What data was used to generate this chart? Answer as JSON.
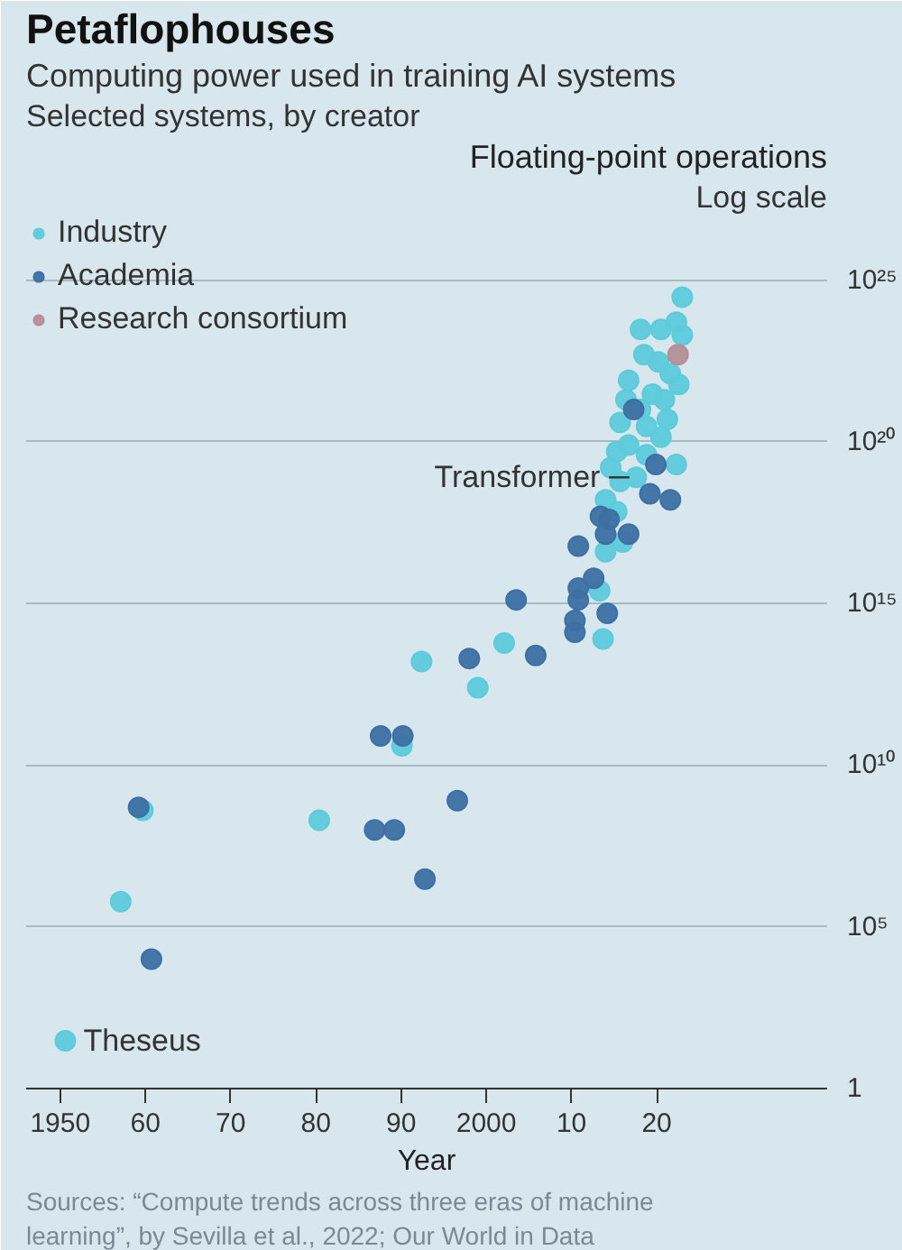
{
  "chart_data": {
    "type": "scatter",
    "title": "Petaflophouses",
    "subtitle": "Computing power used in training AI systems",
    "xlabel": "Year",
    "ylabel": "Floating-point operations",
    "annotations": [
      "Selected systems, by creator",
      "Log scale",
      "Sources: “Compute trends across three eras of machine learning”, by Sevilla et al., 2022; Our World in Data",
      "1",
      {
        "text": "Transformer",
        "x": 2017.6,
        "y": 8e+18
      },
      {
        "text": "Theseus",
        "x": 1950.6,
        "y": 30
      }
    ],
    "series": [
      {
        "name": "Industry",
        "color": "#5ecbdb",
        "x": [
          1950.6,
          1957.1,
          1959.7,
          1980.4,
          1990.1,
          1992.4,
          1999.0,
          2002.1,
          2013.7,
          2013.3,
          2014.0,
          2016.0,
          2015.3,
          2014.0,
          2015.7,
          2017.6,
          2014.6,
          2022.3,
          2018.8,
          2015.3,
          2016.7,
          2020.5,
          2018.8,
          2015.7,
          2021.25,
          2018.1,
          2016.4,
          2020.9,
          2019.5,
          2016.7,
          2022.6,
          2021.6,
          2020.2,
          2018.5,
          2018.1,
          2020.5,
          2022.3,
          2023.0,
          2023.0
        ],
        "values": [
          30,
          600000.0,
          400000000.0,
          200000000.0,
          40000000000.0,
          16000000000000.0,
          2500000000000.0,
          60000000000000.0,
          80000000000000.0,
          2500000000000000.0,
          4e+16,
          8e+16,
          7e+17,
          1.6e+18,
          6e+18,
          8e+18,
          1.6e+19,
          2e+19,
          4e+19,
          5e+19,
          8e+19,
          1.4e+20,
          3e+20,
          4e+20,
          5e+20,
          1e+21,
          2e+21,
          2e+21,
          3e+21,
          8e+21,
          6e+21,
          1.3e+22,
          3e+22,
          5e+22,
          3e+23,
          3e+23,
          5e+23,
          2e+23,
          3e+24
        ]
      },
      {
        "name": "Academia",
        "color": "#3d70a3",
        "x": [
          1959.2,
          1960.7,
          1986.9,
          1987.6,
          1989.2,
          1990.2,
          1992.8,
          1996.6,
          1998.0,
          2003.5,
          2005.8,
          2010.4,
          2010.4,
          2010.8,
          2010.8,
          2010.8,
          2012.6,
          2014.2,
          2013.4,
          2014.4,
          2014.0,
          2016.7,
          2017.3,
          2019.2,
          2019.9,
          2021.6
        ],
        "values": [
          500000000.0,
          10000.0,
          100000000.0,
          80000000000.0,
          100000000.0,
          80000000000.0,
          3000000.0,
          800000000.0,
          20000000000000.0,
          1300000000000000.0,
          25000000000000.0,
          300000000000000.0,
          130000000000000.0,
          1300000000000000.0,
          3000000000000000.0,
          6e+16,
          6000000000000000.0,
          500000000000000.0,
          5e+17,
          4e+17,
          1.4e+17,
          1.4e+17,
          1e+21,
          2.5e+18,
          2e+19,
          1.6e+18
        ]
      },
      {
        "name": "Research consortium",
        "color": "#b58e97",
        "x": [
          2022.5
        ],
        "values": [
          5e+22
        ]
      }
    ],
    "xlim": [
      1946,
      2040
    ],
    "ylim": [
      1,
      1e+27
    ],
    "log": "y",
    "xticks": [
      {
        "value": 1950,
        "label": "1950"
      },
      {
        "value": 1960,
        "label": "60"
      },
      {
        "value": 1970,
        "label": "70"
      },
      {
        "value": 1980,
        "label": "80"
      },
      {
        "value": 1990,
        "label": "90"
      },
      {
        "value": 2000,
        "label": "2000"
      },
      {
        "value": 2010,
        "label": "10"
      },
      {
        "value": 2020,
        "label": "20"
      }
    ],
    "yticks": [
      1,
      {
        "value": 100000.0,
        "label": "10⁵"
      },
      {
        "value": 10000000000.0,
        "label": "10¹⁰"
      },
      {
        "value": 1000000000000000.0,
        "label": "10¹⁵"
      },
      {
        "value": 1e+20,
        "label": "10²⁰"
      },
      {
        "value": 1e+25,
        "label": "10²⁵"
      }
    ],
    "grid": "y",
    "legend": "top left",
    "marker": "circle"
  }
}
